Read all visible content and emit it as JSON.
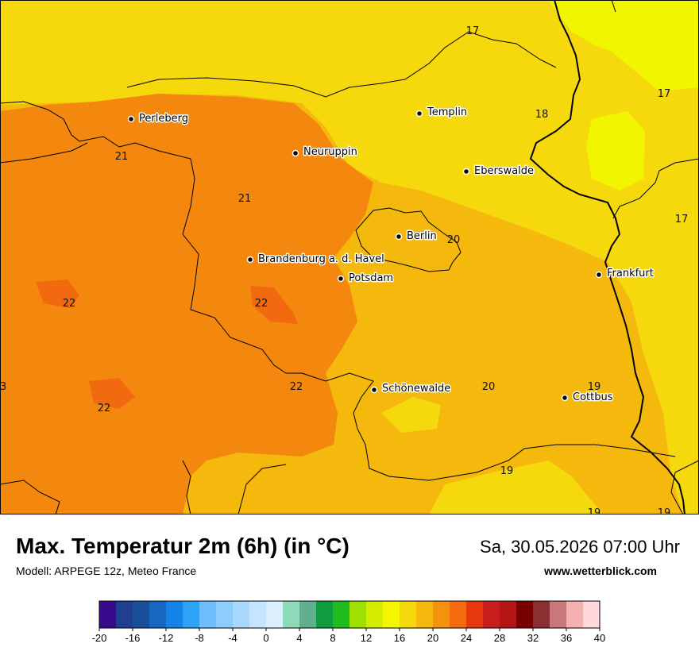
{
  "title": "Max. Temperatur 2m (6h) (in °C)",
  "subtitle": "Modell: ARPEGE 12z, Meteo France",
  "datetime": "Sa, 30.05.2026 07:00 Uhr",
  "website": "www.wetterblick.com",
  "cities": [
    {
      "name": "Perleberg"
    },
    {
      "name": "Templin"
    },
    {
      "name": "Neuruppin"
    },
    {
      "name": "Eberswalde"
    },
    {
      "name": "Berlin"
    },
    {
      "name": "Brandenburg a. d. Havel"
    },
    {
      "name": "Potsdam"
    },
    {
      "name": "Frankfurt"
    },
    {
      "name": "Schönewalde"
    },
    {
      "name": "Cottbus"
    }
  ],
  "isotherm_labels": [
    "17",
    "18",
    "17",
    "17",
    "21",
    "21",
    "20",
    "22",
    "22",
    "22",
    "22",
    "20",
    "19",
    "19",
    "19",
    "19",
    "3"
  ],
  "legend": {
    "ticks": [
      "-20",
      "-16",
      "-12",
      "-8",
      "-4",
      "0",
      "4",
      "8",
      "12",
      "16",
      "20",
      "24",
      "28",
      "32",
      "36",
      "40"
    ],
    "colors": [
      "#3a0a8c",
      "#1f3f8f",
      "#1a4f9c",
      "#1767c0",
      "#1584e8",
      "#2ea3f5",
      "#6fbdfa",
      "#8ccdfb",
      "#a8d8fc",
      "#c5e4fd",
      "#dcefff",
      "#8dd9b9",
      "#5fb08e",
      "#109c40",
      "#1fbc1f",
      "#9fe000",
      "#d4ec00",
      "#f5f500",
      "#f6d90c",
      "#f5b80c",
      "#f4910e",
      "#f56b0f",
      "#e8380d",
      "#c81e1e",
      "#b41616",
      "#7a0000",
      "#8c2f32",
      "#c87878",
      "#f4b0b0",
      "#ffd8dc"
    ]
  },
  "colors": {
    "t17": "#f1f600",
    "t18": "#f6d90c",
    "t20": "#f5b80c",
    "t22": "#f4870e",
    "t23": "#f16a0f"
  }
}
